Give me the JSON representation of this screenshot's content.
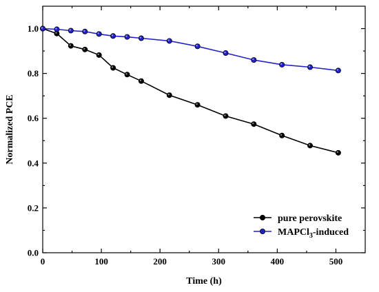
{
  "chart_data": {
    "type": "line",
    "xlabel": "Time (h)",
    "ylabel": "Normalized PCE",
    "xlim": [
      0,
      550
    ],
    "ylim": [
      0.0,
      1.1
    ],
    "x_ticks": [
      0,
      100,
      200,
      300,
      400,
      500
    ],
    "y_ticks": [
      0.0,
      0.2,
      0.4,
      0.6,
      0.8,
      1.0
    ],
    "x_tick_labels": [
      "0",
      "100",
      "200",
      "300",
      "400",
      "500"
    ],
    "y_tick_labels": [
      "0.0",
      "0.2",
      "0.4",
      "0.6",
      "0.8",
      "1.0"
    ],
    "legend_position": "bottom-right",
    "grid": false,
    "series": [
      {
        "name": "pure perovskite",
        "color": "#000000",
        "x": [
          0,
          24,
          48,
          72,
          96,
          120,
          144,
          168,
          216,
          264,
          312,
          360,
          408,
          456,
          504
        ],
        "y": [
          1.0,
          0.978,
          0.923,
          0.907,
          0.882,
          0.825,
          0.795,
          0.766,
          0.703,
          0.66,
          0.61,
          0.574,
          0.523,
          0.478,
          0.446
        ]
      },
      {
        "name": "MAPCl",
        "name_subscript": "3",
        "name_suffix": "-induced",
        "color": "#2020cc",
        "x": [
          0,
          24,
          48,
          72,
          96,
          120,
          144,
          168,
          216,
          264,
          312,
          360,
          408,
          456,
          504
        ],
        "y": [
          1.0,
          0.997,
          0.991,
          0.987,
          0.976,
          0.967,
          0.963,
          0.957,
          0.945,
          0.921,
          0.891,
          0.86,
          0.839,
          0.828,
          0.813
        ]
      }
    ]
  }
}
